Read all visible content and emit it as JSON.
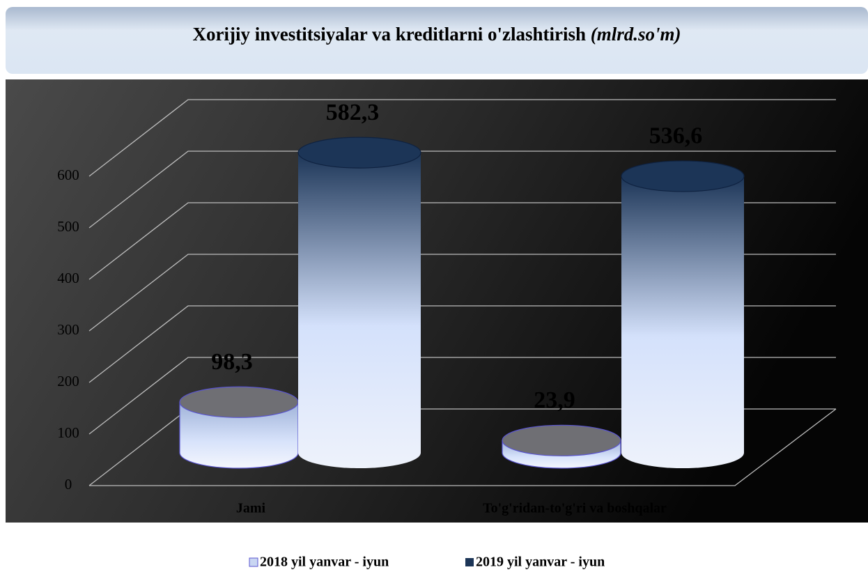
{
  "chart_data": {
    "type": "bar",
    "style": "3d-cylinder",
    "title": "Xorijiy investitsiyalar va kreditlarni o'zlashtirish",
    "title_unit": "(mlrd.so'm)",
    "categories": [
      "Jami",
      "To'g'ridan-to'g'ri va boshqalar"
    ],
    "series": [
      {
        "name": "2018 yil yanvar - iyun",
        "color": "#c9d6f2",
        "values": [
          98.3,
          23.9
        ],
        "value_labels": [
          "98,3",
          "23,9"
        ]
      },
      {
        "name": "2019 yil yanvar - iyun",
        "color": "#1c3557",
        "values": [
          582.3,
          536.6
        ],
        "value_labels": [
          "582,3",
          "536,6"
        ]
      }
    ],
    "ylim": [
      0,
      600
    ],
    "yticks": [
      0,
      100,
      200,
      300,
      400,
      500,
      600
    ],
    "grid": true,
    "legend": "bottom"
  }
}
